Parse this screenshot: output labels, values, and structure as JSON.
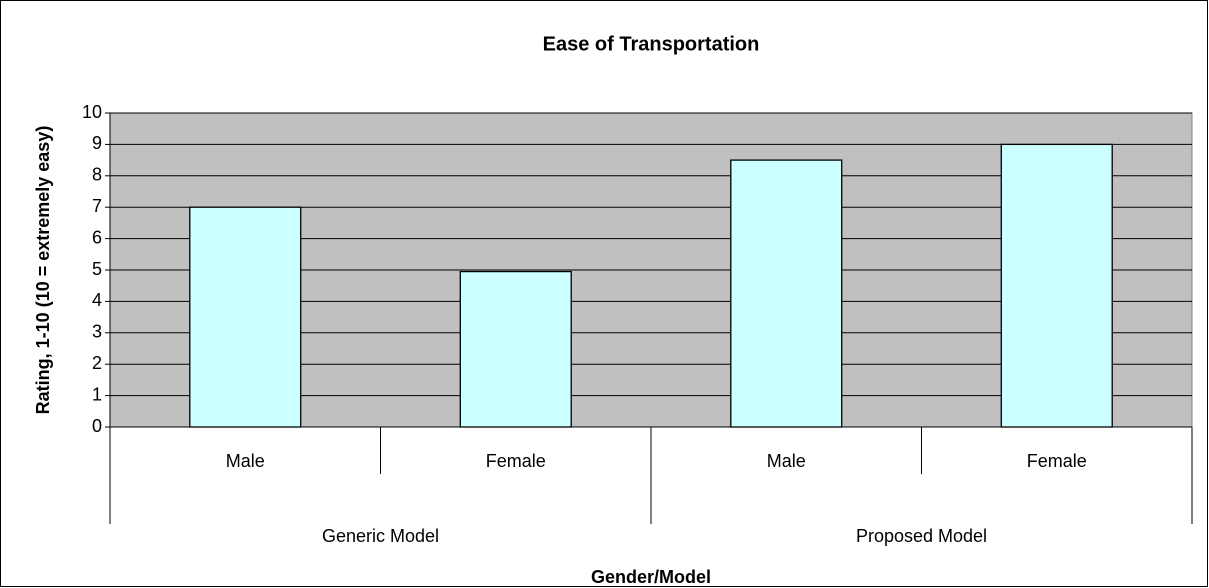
{
  "chart_data": {
    "type": "bar",
    "title": "Ease of Transportation",
    "x_label": "Gender/Model",
    "y_label": "Rating, 1-10 (10 = extremely easy)",
    "categories": [
      "Male",
      "Female",
      "Male",
      "Female"
    ],
    "groups": [
      "Generic Model",
      "Proposed Model"
    ],
    "values": [
      7,
      4.95,
      8.5,
      9
    ],
    "color": "#ccffff",
    "ylim": [
      0,
      10
    ],
    "yticks": [
      0,
      1,
      2,
      3,
      4,
      5,
      6,
      7,
      8,
      9,
      10
    ],
    "grid": true
  }
}
